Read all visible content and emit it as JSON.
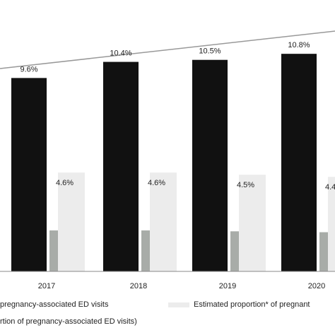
{
  "chart_data": {
    "type": "bar",
    "categories": [
      "2017",
      "2018",
      "2019",
      "2020"
    ],
    "series": [
      {
        "values": [
          9.6,
          10.4,
          10.5,
          10.8
        ],
        "labels": [
          "9.6%",
          "10.4%",
          "10.5%",
          "10.8%"
        ],
        "color": "#111111"
      },
      {
        "values": [
          4.6,
          4.6,
          4.5,
          4.4
        ],
        "labels": [
          "4.6%",
          "4.6%",
          "4.5%",
          "4.4%"
        ],
        "color": "#a8aca8"
      },
      {
        "values": [
          4.6,
          4.6,
          4.5,
          4.4
        ],
        "color": "#ececec"
      }
    ],
    "trendline": {
      "color": "#999999"
    },
    "ylim": [
      0,
      12.7
    ],
    "grid": false,
    "legend_position": "bottom"
  },
  "legend": {
    "item1": "pregnancy-associated ED visits",
    "item2": "Estimated proportion* of pregnant",
    "item3": "rtion of pregnancy-associated ED visits)"
  }
}
